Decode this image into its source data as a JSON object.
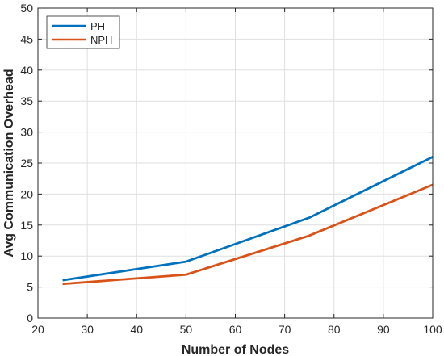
{
  "chart_data": {
    "type": "line",
    "xlabel": "Number of Nodes",
    "ylabel": "Avg Communication Overhead",
    "xlim": [
      20,
      100
    ],
    "ylim": [
      0,
      50
    ],
    "xticks": [
      20,
      30,
      40,
      50,
      60,
      70,
      80,
      90,
      100
    ],
    "yticks": [
      0,
      5,
      10,
      15,
      20,
      25,
      30,
      35,
      40,
      45,
      50
    ],
    "grid": true,
    "legend_position": "top-left",
    "series": [
      {
        "name": "PH",
        "color": "#0072BD",
        "x": [
          25,
          50,
          75,
          100
        ],
        "y": [
          6.1,
          9.1,
          16.2,
          26.0
        ]
      },
      {
        "name": "NPH",
        "color": "#D95319",
        "x": [
          25,
          50,
          75,
          100
        ],
        "y": [
          5.5,
          7.0,
          13.3,
          21.5
        ]
      }
    ]
  }
}
